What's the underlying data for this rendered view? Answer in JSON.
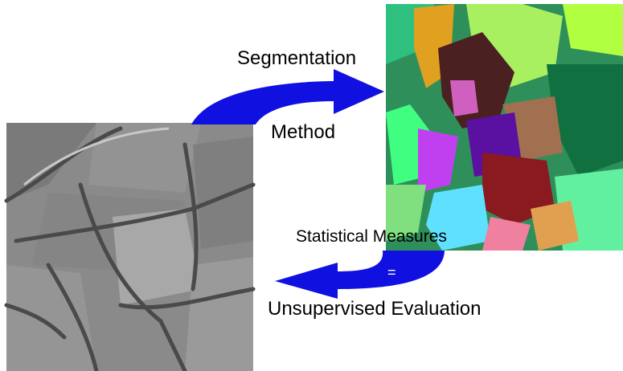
{
  "top_arrow": {
    "line1": "Segmentation",
    "line2": "Method"
  },
  "bottom_arrow": {
    "line1": "Statistical Measures",
    "symbol": "=",
    "line2": "Unsupervised Evaluation"
  }
}
